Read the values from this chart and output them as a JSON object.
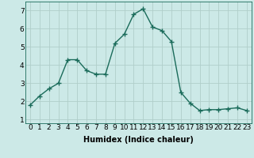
{
  "x": [
    0,
    1,
    2,
    3,
    4,
    5,
    6,
    7,
    8,
    9,
    10,
    11,
    12,
    13,
    14,
    15,
    16,
    17,
    18,
    19,
    20,
    21,
    22,
    23
  ],
  "y": [
    1.8,
    2.3,
    2.7,
    3.0,
    4.3,
    4.3,
    3.7,
    3.5,
    3.5,
    5.2,
    5.7,
    6.8,
    7.1,
    6.1,
    5.9,
    5.3,
    2.5,
    1.9,
    1.5,
    1.55,
    1.55,
    1.6,
    1.65,
    1.5
  ],
  "line_color": "#1a6b5a",
  "marker": "D",
  "marker_size": 2.2,
  "bg_color": "#cce9e7",
  "grid_color": "#b0ceca",
  "xlabel": "Humidex (Indice chaleur)",
  "xlim": [
    -0.5,
    23.5
  ],
  "ylim": [
    0.8,
    7.5
  ],
  "yticks": [
    1,
    2,
    3,
    4,
    5,
    6,
    7
  ],
  "xticks": [
    0,
    1,
    2,
    3,
    4,
    5,
    6,
    7,
    8,
    9,
    10,
    11,
    12,
    13,
    14,
    15,
    16,
    17,
    18,
    19,
    20,
    21,
    22,
    23
  ],
  "xlabel_fontsize": 7,
  "tick_fontsize": 6.5,
  "linewidth": 1.0,
  "axis_bg": "#cce9e7",
  "fig_bg": "#cce9e7"
}
